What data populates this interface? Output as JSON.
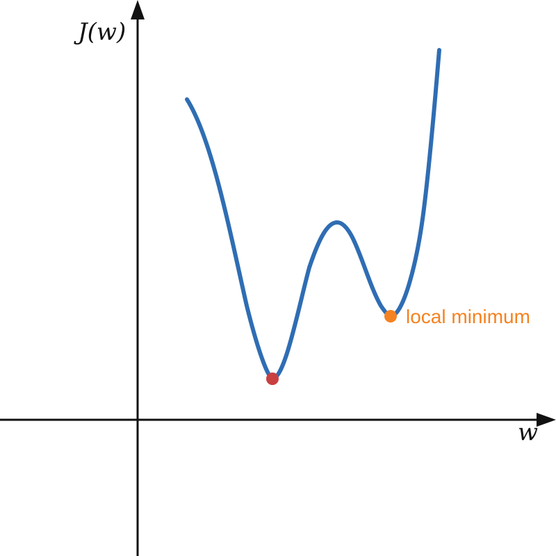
{
  "axes": {
    "y_label": "J(w)",
    "x_label": "w"
  },
  "annotations": {
    "local_min_label": "local minimum"
  },
  "colors": {
    "axis": "#111111",
    "curve": "#2f6db3",
    "global_min_marker": "#c8403f",
    "local_min_marker": "#f58220",
    "local_min_label": "#f58220"
  }
}
